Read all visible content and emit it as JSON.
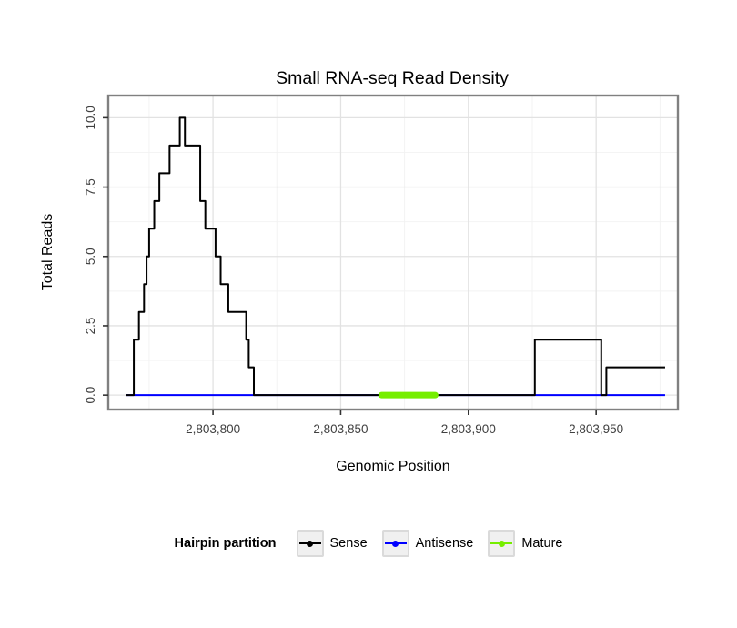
{
  "chart_data": {
    "type": "line",
    "title": "Small RNA-seq Read Density",
    "xlabel": "Genomic Position",
    "ylabel": "Total Reads",
    "xlim": [
      2803759,
      2803982
    ],
    "ylim": [
      -0.52,
      10.8
    ],
    "grid": "major and minor light-gray gridlines on white panel, gray panel border",
    "legend_position": "bottom",
    "x_ticks": [
      {
        "value": 2803800,
        "label": "2,803,800"
      },
      {
        "value": 2803850,
        "label": "2,803,850"
      },
      {
        "value": 2803900,
        "label": "2,803,900"
      },
      {
        "value": 2803950,
        "label": "2,803,950"
      }
    ],
    "y_ticks": [
      {
        "value": 0,
        "label": "0.0"
      },
      {
        "value": 2.5,
        "label": "2.5"
      },
      {
        "value": 5,
        "label": "5.0"
      },
      {
        "value": 7.5,
        "label": "7.5"
      },
      {
        "value": 10,
        "label": "10.0"
      }
    ],
    "x_minor_ticks": [
      2803775,
      2803825,
      2803875,
      2803925,
      2803975
    ],
    "y_minor_ticks": [
      1.25,
      3.75,
      6.25,
      8.75
    ],
    "series": [
      {
        "name": "Sense",
        "color": "#000000",
        "width": 2,
        "style": "step",
        "points": [
          [
            2803766,
            0
          ],
          [
            2803769,
            2
          ],
          [
            2803771,
            3
          ],
          [
            2803773,
            4
          ],
          [
            2803774,
            5
          ],
          [
            2803775,
            6
          ],
          [
            2803777,
            7
          ],
          [
            2803779,
            8
          ],
          [
            2803783,
            9
          ],
          [
            2803787,
            10
          ],
          [
            2803789,
            9
          ],
          [
            2803795,
            7
          ],
          [
            2803797,
            6
          ],
          [
            2803801,
            5
          ],
          [
            2803803,
            4
          ],
          [
            2803806,
            3
          ],
          [
            2803813,
            2
          ],
          [
            2803814,
            1
          ],
          [
            2803816,
            0
          ],
          [
            2803926,
            2
          ],
          [
            2803952,
            0
          ],
          [
            2803954,
            1
          ],
          [
            2803977,
            1
          ]
        ]
      },
      {
        "name": "Antisense",
        "color": "#0000FF",
        "width": 2,
        "style": "step",
        "points": [
          [
            2803766,
            0
          ],
          [
            2803977,
            0
          ]
        ]
      },
      {
        "name": "Mature",
        "color": "#76EE00",
        "width": 7,
        "style": "segment",
        "points": [
          [
            2803866,
            0
          ],
          [
            2803887,
            0
          ]
        ]
      }
    ]
  },
  "legend": {
    "title": "Hairpin partition",
    "items": [
      {
        "label": "Sense",
        "color": "#000000"
      },
      {
        "label": "Antisense",
        "color": "#0000FF"
      },
      {
        "label": "Mature",
        "color": "#76EE00"
      }
    ]
  }
}
